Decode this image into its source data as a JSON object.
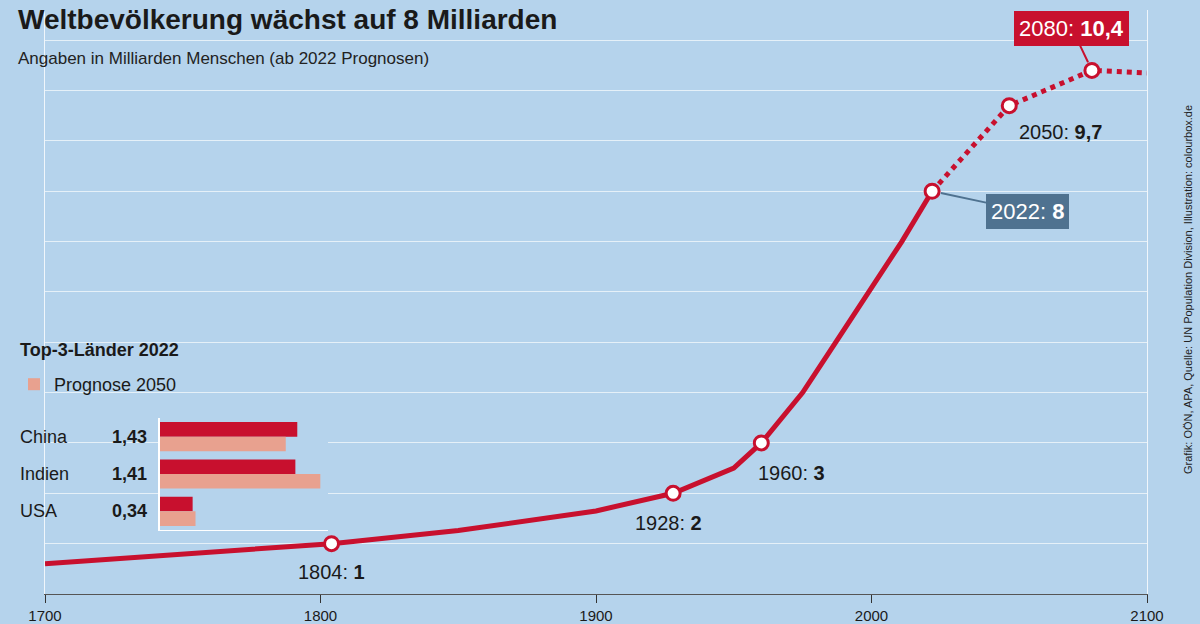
{
  "chart_data": [
    {
      "type": "line",
      "title": "Weltbevölkerung wächst auf 8 Milliarden",
      "subtitle": "Angaben in Milliarden Menschen (ab 2022 Prognosen)",
      "source": "Grafik: OÖN, APA, Quelle: UN Population Division, Illustration: colourbox.de",
      "series": [
        {
          "x": [
            1700,
            1750,
            1804,
            1850,
            1900,
            1928,
            1950,
            1960,
            1975,
            1987,
            1999,
            2011,
            2022
          ],
          "values": [
            0.6,
            0.8,
            1,
            1.26,
            1.65,
            2,
            2.5,
            3,
            4,
            5,
            6,
            7,
            8
          ],
          "color": "#c8102e",
          "line_style": "solid"
        },
        {
          "x": [
            2022,
            2050,
            2080,
            2100
          ],
          "values": [
            8,
            9.7,
            10.4,
            10.35
          ],
          "color": "#c8102e",
          "line_style": "dot"
        }
      ],
      "annotations": [
        {
          "x": 1804,
          "y": 1,
          "text": "1804: 1"
        },
        {
          "x": 1928,
          "y": 2,
          "text": "1928: 2"
        },
        {
          "x": 1960,
          "y": 3,
          "text": "1960: 3"
        },
        {
          "x": 2022,
          "y": 8,
          "text": "2022: 8",
          "color": "#4f7290"
        },
        {
          "x": 2050,
          "y": 9.7,
          "text": "2050: 9,7"
        },
        {
          "x": 2080,
          "y": 10.4,
          "text": "2080: 10,4",
          "color": "#c8102e"
        }
      ],
      "marker": "circle",
      "xlim": [
        1700,
        2100
      ],
      "xticks": [
        1700,
        1800,
        1900,
        2000,
        2100
      ],
      "ylim": [
        0,
        11.6
      ],
      "yticks": [
        0,
        1,
        2,
        3,
        4,
        5,
        6,
        7,
        8,
        9,
        10,
        11
      ],
      "grid": true,
      "tick_labels": "x"
    },
    {
      "type": "bar",
      "orientation": "horizontal",
      "title": "Top-3-Länder 2022",
      "categories": [
        "China",
        "Indien",
        "USA"
      ],
      "series": [
        {
          "values": [
            1.43,
            1.41,
            0.34
          ],
          "value_labels": [
            "1,43",
            "1,41",
            "0,34"
          ],
          "color": "#c8102e"
        },
        {
          "name": "Prognose 2050",
          "values": [
            1.31,
            1.67,
            0.37
          ],
          "color": "#e8a18f"
        }
      ],
      "xlim": [
        0,
        1.75
      ],
      "data_labels": true,
      "tick_labels": false,
      "legend": "top left"
    }
  ]
}
